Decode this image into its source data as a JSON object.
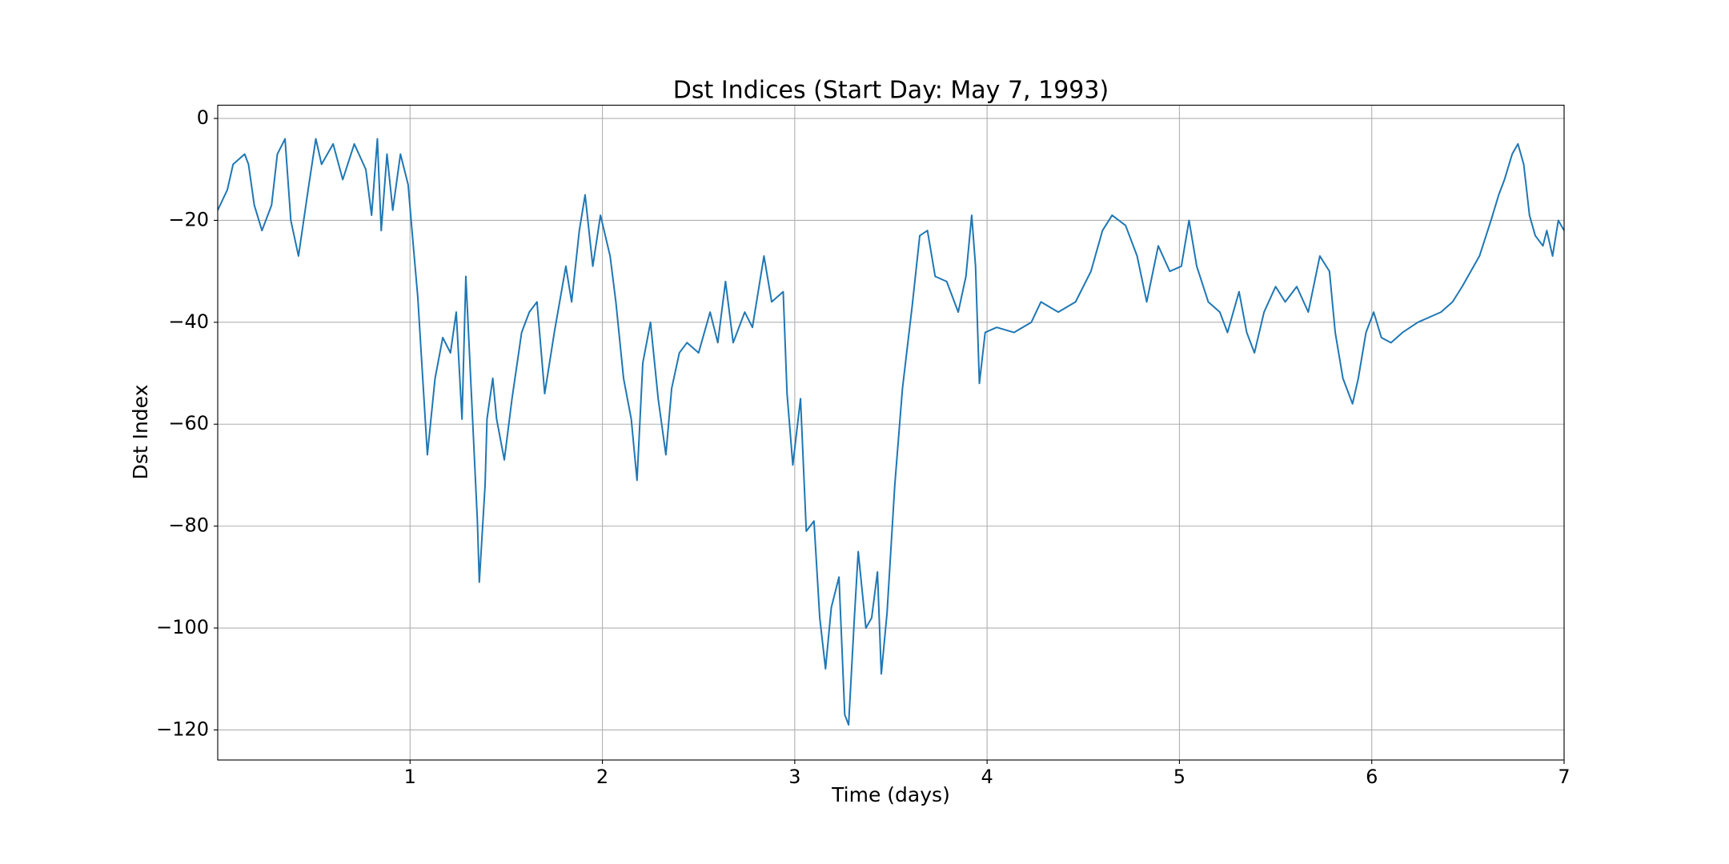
{
  "chart_data": {
    "type": "line",
    "title": "Dst Indices (Start Day: May 7, 1993)",
    "xlabel": "Time (days)",
    "ylabel": "Dst Index",
    "xlim": [
      0,
      7
    ],
    "xticks": [
      1,
      2,
      3,
      4,
      5,
      6,
      7
    ],
    "ylim": [
      -125.9,
      2.6
    ],
    "yticks": [
      {
        "value": -120,
        "label": "−120"
      },
      {
        "value": -100,
        "label": "−100"
      },
      {
        "value": -80,
        "label": "−80"
      },
      {
        "value": -60,
        "label": "−60"
      },
      {
        "value": -40,
        "label": "−40"
      },
      {
        "value": -20,
        "label": "−20"
      },
      0
    ],
    "grid": true,
    "series": [
      {
        "name": "Dst",
        "color": "#1f77b4",
        "x": [
          0.0,
          0.05,
          0.08,
          0.14,
          0.16,
          0.19,
          0.23,
          0.28,
          0.31,
          0.35,
          0.38,
          0.42,
          0.47,
          0.51,
          0.54,
          0.6,
          0.65,
          0.71,
          0.77,
          0.8,
          0.83,
          0.85,
          0.88,
          0.91,
          0.95,
          0.99,
          1.01,
          1.04,
          1.09,
          1.13,
          1.17,
          1.21,
          1.24,
          1.27,
          1.29,
          1.32,
          1.35,
          1.36,
          1.39,
          1.4,
          1.43,
          1.45,
          1.49,
          1.53,
          1.58,
          1.62,
          1.66,
          1.7,
          1.75,
          1.81,
          1.84,
          1.88,
          1.91,
          1.95,
          1.99,
          2.04,
          2.07,
          2.11,
          2.15,
          2.18,
          2.21,
          2.25,
          2.29,
          2.33,
          2.36,
          2.4,
          2.44,
          2.5,
          2.56,
          2.6,
          2.64,
          2.68,
          2.74,
          2.78,
          2.84,
          2.88,
          2.94,
          2.96,
          2.99,
          3.03,
          3.06,
          3.1,
          3.13,
          3.16,
          3.19,
          3.23,
          3.26,
          3.28,
          3.31,
          3.33,
          3.37,
          3.4,
          3.43,
          3.45,
          3.48,
          3.52,
          3.56,
          3.61,
          3.65,
          3.69,
          3.73,
          3.79,
          3.85,
          3.89,
          3.92,
          3.94,
          3.96,
          3.99,
          4.05,
          4.14,
          4.23,
          4.28,
          4.37,
          4.46,
          4.54,
          4.6,
          4.65,
          4.72,
          4.78,
          4.83,
          4.89,
          4.95,
          5.01,
          5.05,
          5.09,
          5.15,
          5.21,
          5.25,
          5.31,
          5.35,
          5.39,
          5.44,
          5.5,
          5.55,
          5.61,
          5.67,
          5.73,
          5.78,
          5.81,
          5.85,
          5.9,
          5.93,
          5.97,
          6.01,
          6.05,
          6.1,
          6.16,
          6.24,
          6.36,
          6.42,
          6.47,
          6.56,
          6.62,
          6.66,
          6.69,
          6.73,
          6.76,
          6.79,
          6.82,
          6.85,
          6.89,
          6.91,
          6.94,
          6.97,
          7.0
        ],
        "values": [
          -18,
          -14,
          -9,
          -7,
          -9,
          -17,
          -22,
          -17,
          -7,
          -4,
          -20,
          -27,
          -14,
          -4,
          -9,
          -5,
          -12,
          -5,
          -10,
          -19,
          -4,
          -22,
          -7,
          -18,
          -7,
          -13,
          -22,
          -35,
          -66,
          -51,
          -43,
          -46,
          -38,
          -59,
          -31,
          -55,
          -79,
          -91,
          -72,
          -59,
          -51,
          -59,
          -67,
          -55,
          -42,
          -38,
          -36,
          -54,
          -42,
          -29,
          -36,
          -22,
          -15,
          -29,
          -19,
          -27,
          -36,
          -51,
          -59,
          -71,
          -48,
          -40,
          -55,
          -66,
          -53,
          -46,
          -44,
          -46,
          -38,
          -44,
          -32,
          -44,
          -38,
          -41,
          -27,
          -36,
          -34,
          -54,
          -68,
          -55,
          -81,
          -79,
          -98,
          -108,
          -96,
          -90,
          -117,
          -119,
          -98,
          -85,
          -100,
          -98,
          -89,
          -109,
          -97,
          -72,
          -53,
          -37,
          -23,
          -22,
          -31,
          -32,
          -38,
          -31,
          -19,
          -29,
          -52,
          -42,
          -41,
          -42,
          -40,
          -36,
          -38,
          -36,
          -30,
          -22,
          -19,
          -21,
          -27,
          -36,
          -25,
          -30,
          -29,
          -20,
          -29,
          -36,
          -38,
          -42,
          -34,
          -42,
          -46,
          -38,
          -33,
          -36,
          -33,
          -38,
          -27,
          -30,
          -42,
          -51,
          -56,
          -51,
          -42,
          -38,
          -43,
          -44,
          -42,
          -40,
          -38,
          -36,
          -33,
          -27,
          -20,
          -15,
          -12,
          -7,
          -5,
          -9,
          -19,
          -23,
          -25,
          -22,
          -27,
          -20,
          -22
        ]
      }
    ]
  }
}
